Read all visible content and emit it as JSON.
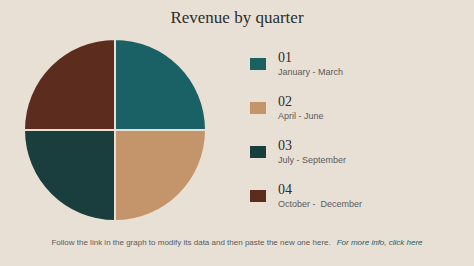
{
  "chart_data": {
    "type": "pie",
    "title": "Revenue by quarter",
    "categories": [
      "01",
      "02",
      "03",
      "04"
    ],
    "sublabels": [
      "January - March",
      "April - June",
      "July - September",
      "October -  December"
    ],
    "values": [
      25,
      25,
      25,
      25
    ],
    "colors": [
      "#1a6166",
      "#c4956a",
      "#1a3d3d",
      "#5c2d1e"
    ],
    "annotations": [
      "Follow the link in the graph to modify its data and then paste the new one here.",
      "For more info, click here"
    ]
  }
}
